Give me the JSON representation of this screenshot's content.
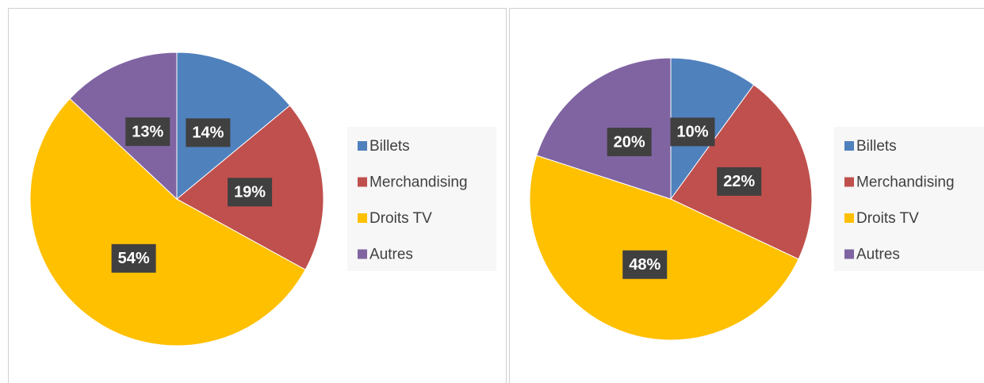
{
  "chart_data": [
    {
      "type": "pie",
      "categories": [
        "Billets",
        "Merchandising",
        "Droits TV",
        "Autres"
      ],
      "values": [
        14,
        19,
        54,
        13
      ],
      "value_labels": [
        "14%",
        "19%",
        "54%",
        "13%"
      ],
      "colors": [
        "#4f81bd",
        "#c0504d",
        "#ffc000",
        "#8064a2"
      ]
    },
    {
      "type": "pie",
      "categories": [
        "Billets",
        "Merchandising",
        "Droits TV",
        "Autres"
      ],
      "values": [
        10,
        22,
        48,
        20
      ],
      "value_labels": [
        "10%",
        "22%",
        "48%",
        "20%"
      ],
      "colors": [
        "#4f81bd",
        "#c0504d",
        "#ffc000",
        "#8064a2"
      ]
    }
  ]
}
